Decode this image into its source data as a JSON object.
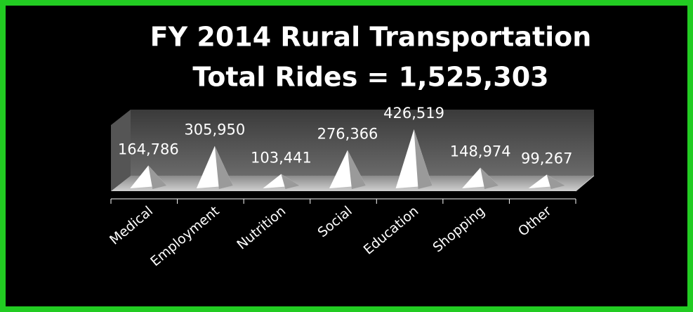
{
  "chart_data": {
    "type": "pyramid",
    "title": "FY 2014 Rural Transportation",
    "subtitle": "Total Rides = 1,525,303",
    "categories": [
      "Medical",
      "Employment",
      "Nutrition",
      "Social",
      "Education",
      "Shopping",
      "Other"
    ],
    "values": [
      164786,
      305950,
      103441,
      276366,
      426519,
      148974,
      99267
    ],
    "value_labels": [
      "164,786",
      "305,950",
      "103,441",
      "276,366",
      "426,519",
      "148,974",
      "99,267"
    ],
    "color": "#ffffff"
  }
}
